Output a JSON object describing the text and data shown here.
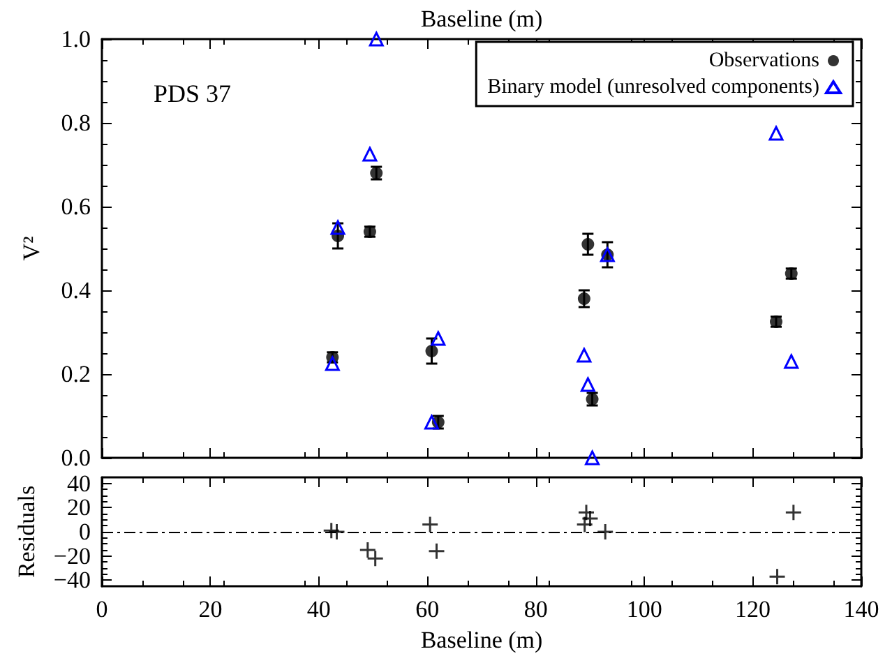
{
  "chart_data": [
    {
      "type": "scatter",
      "ylabel": "V²",
      "x2label": "Baseline (m)",
      "annotations": [
        "PDS 37"
      ],
      "xlim": [
        0,
        140
      ],
      "xticks": [
        0,
        20,
        40,
        60,
        80,
        100,
        120,
        140
      ],
      "ylim": [
        0,
        1.0
      ],
      "yticks": [
        {
          "value": 0,
          "label": "0.0"
        },
        0.2,
        0.4,
        0.6,
        0.8,
        {
          "value": 1,
          "label": "1.0"
        }
      ],
      "tick_labels": "y",
      "legend": "top right",
      "grid": false,
      "series": [
        {
          "name": "Observations",
          "color": "#000000",
          "marker": "circle",
          "x": [
            42.5,
            43.5,
            49.4,
            50.6,
            60.8,
            62.0,
            88.9,
            89.6,
            90.4,
            93.2,
            124.3,
            127.1
          ],
          "values": [
            0.24,
            0.53,
            0.54,
            0.68,
            0.255,
            0.085,
            0.38,
            0.51,
            0.14,
            0.485,
            0.325,
            0.44
          ],
          "errors": [
            0.012,
            0.03,
            0.012,
            0.015,
            0.03,
            0.015,
            0.02,
            0.025,
            0.015,
            0.03,
            0.012,
            0.012
          ]
        },
        {
          "name": "Binary model (unresolved components)",
          "color": "#0000ff",
          "marker": "triangle",
          "x": [
            42.5,
            43.5,
            49.4,
            50.6,
            60.8,
            62.0,
            88.9,
            89.6,
            90.4,
            93.2,
            124.3,
            127.1
          ],
          "values": [
            0.225,
            0.55,
            0.725,
            1.0,
            0.085,
            0.285,
            0.245,
            0.175,
            0.0,
            0.485,
            0.775,
            0.23
          ]
        }
      ]
    },
    {
      "type": "scatter",
      "xlabel": "Baseline (m)",
      "ylabel": "Residuals",
      "xlim": [
        0,
        140
      ],
      "xticks": [
        0,
        20,
        40,
        60,
        80,
        100,
        120,
        140
      ],
      "ylim": [
        -45,
        45
      ],
      "yticks": [
        {
          "value": -40,
          "label": "−40"
        },
        {
          "value": -20,
          "label": "−20"
        },
        0,
        20,
        40
      ],
      "grid": false,
      "marker": "cross",
      "ref_lines": [
        {
          "axis": "y",
          "value": 0,
          "line_style": "dashed",
          "color": "#000000"
        }
      ],
      "series": [
        {
          "color": "#000000",
          "x": [
            42.3,
            43.3,
            49.0,
            50.4,
            60.5,
            61.7,
            89.0,
            89.3,
            90.0,
            92.8,
            124.5,
            127.5
          ],
          "values": [
            1,
            0,
            -15,
            -22,
            6,
            -16,
            6,
            16,
            11,
            0,
            -37,
            16
          ]
        }
      ]
    }
  ]
}
